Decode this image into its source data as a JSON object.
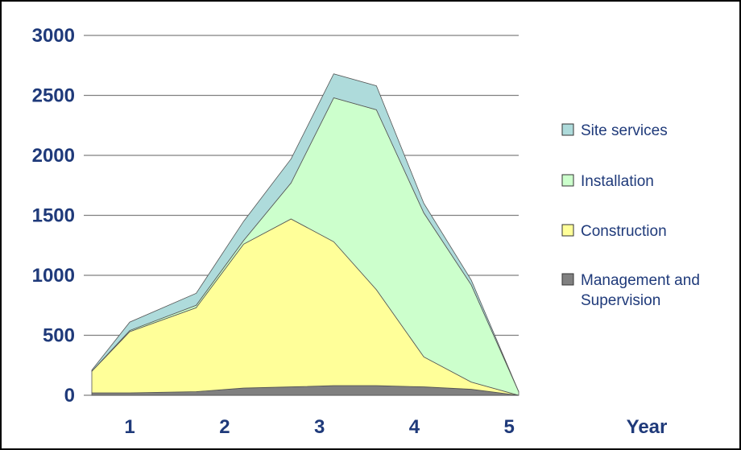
{
  "chart_data": {
    "type": "area",
    "stacked": true,
    "x": [
      0.2,
      0.6,
      1.3,
      1.8,
      2.3,
      2.75,
      3.2,
      3.7,
      4.2,
      4.7
    ],
    "x_ticks": [
      "1",
      "2",
      "3",
      "4",
      "5"
    ],
    "x_tick_values": [
      0.6,
      1.6,
      2.6,
      3.6,
      4.6
    ],
    "xlabel": "Year",
    "ylim": [
      0,
      3000
    ],
    "yticks": [
      0,
      500,
      1000,
      1500,
      2000,
      2500,
      3000
    ],
    "grid": true,
    "legend_position": "right",
    "series": [
      {
        "name": "Management and Supervision",
        "color": "#808080",
        "values": [
          20,
          20,
          30,
          60,
          70,
          80,
          80,
          70,
          50,
          0
        ]
      },
      {
        "name": "Construction",
        "color": "#ffff99",
        "values": [
          180,
          510,
          700,
          1200,
          1400,
          1200,
          800,
          250,
          60,
          0
        ]
      },
      {
        "name": "Installation",
        "color": "#ccffcc",
        "values": [
          0,
          10,
          20,
          30,
          300,
          1200,
          1500,
          1200,
          810,
          30
        ]
      },
      {
        "name": "Site services",
        "color": "#aedbdb",
        "values": [
          10,
          70,
          100,
          160,
          200,
          200,
          200,
          80,
          40,
          0
        ]
      }
    ],
    "legend_order": [
      "Site services",
      "Installation",
      "Construction",
      "Management and Supervision"
    ],
    "legend_lines": [
      [
        "Site services"
      ],
      [
        "Installation"
      ],
      [
        "Construction"
      ],
      [
        "Management and",
        "Supervision"
      ]
    ]
  }
}
